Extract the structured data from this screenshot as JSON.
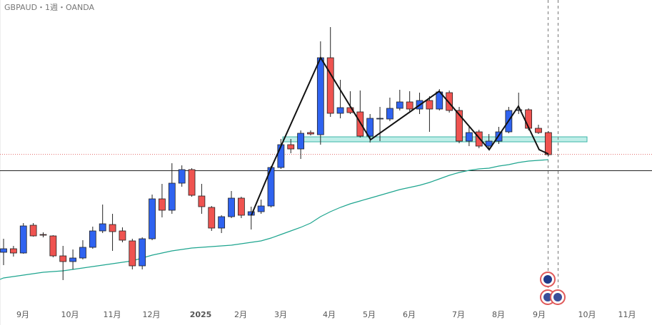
{
  "chart_data": {
    "type": "candlestick",
    "title": "GBPAUD・1週・OANDA",
    "ylim": [
      1.87,
      2.3
    ],
    "up_color": "#2f63f0",
    "down_color": "#ef5350",
    "ma_color": "#1ea58f",
    "xaxis_labels": [
      "9月",
      "10月",
      "11月",
      "12月",
      "2025",
      "2月",
      "3月",
      "4月",
      "5月",
      "6月",
      "7月",
      "8月",
      "9月",
      "10月",
      "11月"
    ],
    "open": [
      1.946,
      1.951,
      1.945,
      1.984,
      1.971,
      1.969,
      1.941,
      1.933,
      1.938,
      1.953,
      1.976,
      1.985,
      1.976,
      1.962,
      1.927,
      1.965,
      2.021,
      2.005,
      2.043,
      2.062,
      2.025,
      2.009,
      1.98,
      1.996,
      2.022,
      1.998,
      2.003,
      2.011,
      2.065,
      2.097,
      2.091,
      2.114,
      2.111,
      2.219,
      2.141,
      2.149,
      2.143,
      2.109,
      2.133,
      2.133,
      2.148,
      2.157,
      2.147,
      2.159,
      2.147,
      2.17,
      2.145,
      2.102,
      2.115,
      2.095,
      2.102,
      2.115,
      2.145,
      2.146,
      2.12,
      2.114
    ],
    "high": [
      1.965,
      1.955,
      1.987,
      1.987,
      1.974,
      1.97,
      1.955,
      1.95,
      1.963,
      1.982,
      2.013,
      2.0,
      1.981,
      1.965,
      1.967,
      2.027,
      2.042,
      2.071,
      2.068,
      2.064,
      2.042,
      2.011,
      1.998,
      2.032,
      2.024,
      2.01,
      2.02,
      2.067,
      2.105,
      2.105,
      2.117,
      2.117,
      2.242,
      2.262,
      2.188,
      2.172,
      2.173,
      2.14,
      2.15,
      2.163,
      2.174,
      2.172,
      2.17,
      2.165,
      2.175,
      2.173,
      2.15,
      2.123,
      2.118,
      2.112,
      2.122,
      2.15,
      2.17,
      2.148,
      2.125,
      2.116
    ],
    "low": [
      1.928,
      1.94,
      1.944,
      1.968,
      1.967,
      1.939,
      1.907,
      1.922,
      1.936,
      1.951,
      1.973,
      1.948,
      1.96,
      1.922,
      1.922,
      1.963,
      1.995,
      2.0,
      2.038,
      2.024,
      2.0,
      1.976,
      1.973,
      1.994,
      1.994,
      1.978,
      2.0,
      2.009,
      2.063,
      2.085,
      2.077,
      2.11,
      2.097,
      2.136,
      2.134,
      2.14,
      2.107,
      2.1,
      2.102,
      2.13,
      2.145,
      2.144,
      2.14,
      2.115,
      2.145,
      2.142,
      2.099,
      2.095,
      2.092,
      2.09,
      2.098,
      2.113,
      2.14,
      2.117,
      2.112,
      2.081
    ],
    "close": [
      1.951,
      1.945,
      1.983,
      1.969,
      1.97,
      1.941,
      1.933,
      1.938,
      1.953,
      1.976,
      1.986,
      1.975,
      1.963,
      1.927,
      1.965,
      2.021,
      2.005,
      2.043,
      2.062,
      2.026,
      2.01,
      1.98,
      1.996,
      2.022,
      1.998,
      2.003,
      2.011,
      2.065,
      2.097,
      2.091,
      2.113,
      2.112,
      2.219,
      2.141,
      2.149,
      2.142,
      2.109,
      2.134,
      2.134,
      2.148,
      2.157,
      2.147,
      2.159,
      2.147,
      2.171,
      2.145,
      2.102,
      2.114,
      2.095,
      2.102,
      2.115,
      2.145,
      2.146,
      2.12,
      2.114,
      2.083
    ],
    "ma": [
      1.91,
      1.912,
      1.914,
      1.916,
      1.918,
      1.919,
      1.92,
      1.922,
      1.924,
      1.926,
      1.928,
      1.93,
      1.932,
      1.934,
      1.938,
      1.942,
      1.945,
      1.948,
      1.95,
      1.952,
      1.953,
      1.954,
      1.955,
      1.956,
      1.958,
      1.96,
      1.962,
      1.966,
      1.971,
      1.976,
      1.981,
      1.987,
      1.996,
      2.003,
      2.009,
      2.014,
      2.018,
      2.022,
      2.026,
      2.03,
      2.034,
      2.037,
      2.04,
      2.044,
      2.049,
      2.054,
      2.058,
      2.061,
      2.063,
      2.064,
      2.067,
      2.069,
      2.072,
      2.074,
      2.075,
      2.076
    ]
  }
}
